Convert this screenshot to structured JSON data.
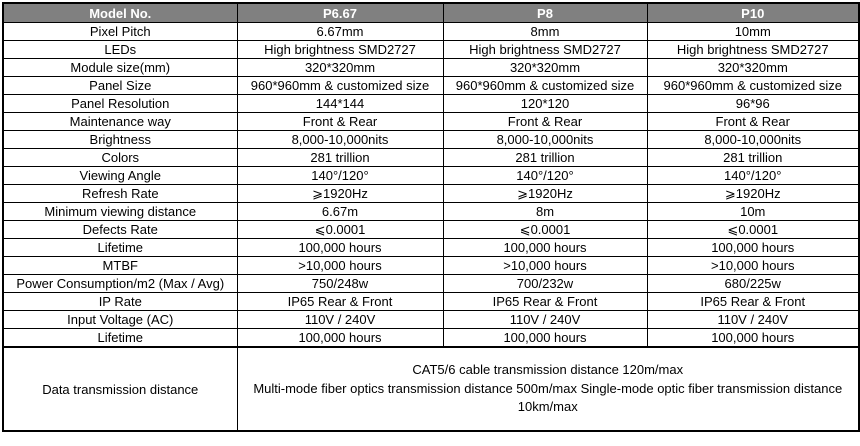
{
  "colors": {
    "header_bg": "#808080",
    "header_text": "#ffffff",
    "border": "#000000",
    "body_text": "#000000"
  },
  "table": {
    "header": [
      "Model No.",
      "P6.67",
      "P8",
      "P10"
    ],
    "rows": [
      {
        "label": "Pixel Pitch",
        "values": [
          "6.67mm",
          "8mm",
          "10mm"
        ]
      },
      {
        "label": "LEDs",
        "values": [
          "High brightness SMD2727",
          "High brightness SMD2727",
          "High brightness SMD2727"
        ]
      },
      {
        "label": "Module size(mm)",
        "values": [
          "320*320mm",
          "320*320mm",
          "320*320mm"
        ]
      },
      {
        "label": "Panel Size",
        "values": [
          "960*960mm & customized size",
          "960*960mm & customized size",
          "960*960mm & customized size"
        ]
      },
      {
        "label": "Panel Resolution",
        "values": [
          "144*144",
          "120*120",
          "96*96"
        ]
      },
      {
        "label": "Maintenance way",
        "values": [
          "Front & Rear",
          "Front & Rear",
          "Front & Rear"
        ]
      },
      {
        "label": "Brightness",
        "values": [
          "8,000-10,000nits",
          "8,000-10,000nits",
          "8,000-10,000nits"
        ]
      },
      {
        "label": "Colors",
        "values": [
          "281 trillion",
          "281 trillion",
          "281 trillion"
        ]
      },
      {
        "label": "Viewing Angle",
        "values": [
          "140°/120°",
          "140°/120°",
          "140°/120°"
        ]
      },
      {
        "label": "Refresh Rate",
        "values": [
          "⩾1920Hz",
          "⩾1920Hz",
          "⩾1920Hz"
        ]
      },
      {
        "label": "Minimum viewing distance",
        "values": [
          "6.67m",
          "8m",
          "10m"
        ]
      },
      {
        "label": "Defects Rate",
        "values": [
          "⩽0.0001",
          "⩽0.0001",
          "⩽0.0001"
        ]
      },
      {
        "label": "Lifetime",
        "values": [
          "100,000 hours",
          "100,000 hours",
          "100,000 hours"
        ]
      },
      {
        "label": "MTBF",
        "values": [
          ">10,000 hours",
          ">10,000 hours",
          ">10,000 hours"
        ]
      },
      {
        "label": "Power Consumption/m2 (Max / Avg)",
        "values": [
          "750/248w",
          "700/232w",
          "680/225w"
        ]
      },
      {
        "label": "IP Rate",
        "values": [
          "IP65 Rear & Front",
          "IP65 Rear & Front",
          "IP65 Rear & Front"
        ]
      },
      {
        "label": "Input Voltage (AC)",
        "values": [
          "110V / 240V",
          "110V / 240V",
          "110V / 240V"
        ]
      },
      {
        "label": "Lifetime",
        "values": [
          "100,000 hours",
          "100,000 hours",
          "100,000 hours"
        ]
      }
    ],
    "footer": {
      "label": "Data transmission distance",
      "lines": [
        "CAT5/6 cable transmission distance 120m/max",
        "Multi-mode fiber optics transmission distance 500m/max Single-mode optic fiber transmission distance 10km/max"
      ]
    }
  }
}
